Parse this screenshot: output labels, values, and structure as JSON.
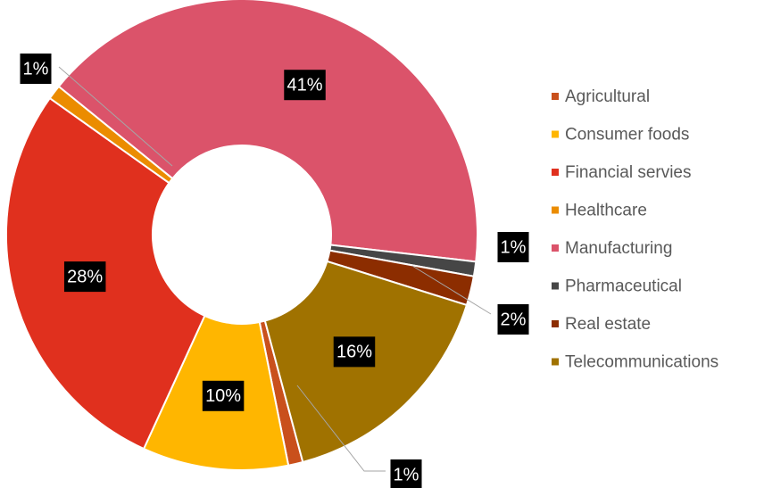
{
  "chart_data": {
    "type": "donut",
    "categories": [
      "Agricultural",
      "Consumer foods",
      "Financial servies",
      "Healthcare",
      "Manufacturing",
      "Pharmaceutical",
      "Real estate",
      "Telecommunications"
    ],
    "values": [
      1,
      10,
      28,
      1,
      41,
      1,
      2,
      16
    ],
    "value_labels": [
      "1%",
      "10%",
      "28%",
      "1%",
      "41%",
      "1%",
      "2%",
      "16%"
    ],
    "colors": [
      "#c9501c",
      "#ffb600",
      "#e0301e",
      "#eb8c00",
      "#db536a",
      "#464646",
      "#8c2d00",
      "#a07200"
    ],
    "legend": "right"
  }
}
